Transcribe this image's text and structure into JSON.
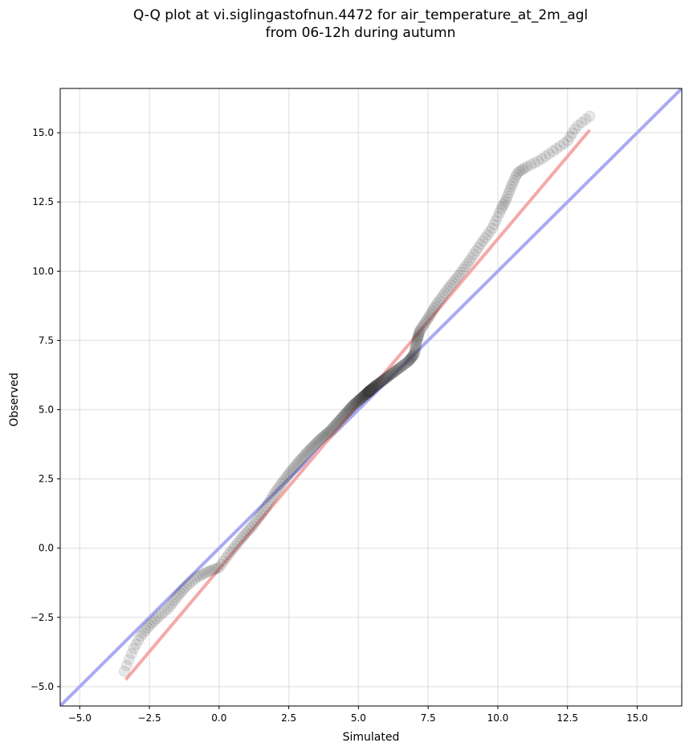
{
  "chart_data": {
    "type": "scatter",
    "title_line1": "Q-Q plot at vi.siglingastofnun.4472 for air_temperature_at_2m_agl",
    "title_line2": "from 06-12h during autumn",
    "xlabel": "Simulated",
    "ylabel": "Observed",
    "xlim": [
      -5.7,
      16.6
    ],
    "ylim": [
      -5.7,
      16.6
    ],
    "x_ticks": [
      -5.0,
      -2.5,
      0.0,
      2.5,
      5.0,
      7.5,
      10.0,
      12.5,
      15.0
    ],
    "x_tick_labels": [
      "−5.0",
      "−2.5",
      "0.0",
      "2.5",
      "5.0",
      "7.5",
      "10.0",
      "12.5",
      "15.0"
    ],
    "y_ticks": [
      -5.0,
      -2.5,
      0.0,
      2.5,
      5.0,
      7.5,
      10.0,
      12.5,
      15.0
    ],
    "y_tick_labels": [
      "−5.0",
      "−2.5",
      "0.0",
      "2.5",
      "5.0",
      "7.5",
      "10.0",
      "12.5",
      "15.0"
    ],
    "grid": true,
    "identity_line": {
      "color": "#aaaaf2",
      "x": [
        -5.7,
        16.6
      ],
      "y": [
        -5.7,
        16.6
      ]
    },
    "fit_line": {
      "color": "#f4a9a9",
      "x": [
        -3.35,
        13.3
      ],
      "y": [
        -4.75,
        15.1
      ]
    },
    "marker_color": "#404040",
    "quantile_curve": {
      "x": [
        -3.4,
        -3.1,
        -2.8,
        -2.5,
        -2.2,
        -1.8,
        -1.5,
        -1.2,
        -0.8,
        -0.4,
        0.0,
        0.4,
        0.8,
        1.2,
        1.6,
        2.0,
        2.4,
        2.8,
        3.2,
        3.6,
        4.0,
        4.4,
        4.8,
        5.2,
        5.6,
        6.0,
        6.4,
        6.8,
        7.0,
        7.1,
        7.2,
        7.5,
        7.8,
        8.2,
        8.6,
        9.0,
        9.4,
        9.8,
        10.1,
        10.3,
        10.5,
        10.7,
        11.0,
        11.5,
        12.0,
        12.5,
        12.8,
        13.3
      ],
      "y": [
        -4.45,
        -3.7,
        -3.15,
        -2.8,
        -2.5,
        -2.15,
        -1.75,
        -1.4,
        -1.05,
        -0.85,
        -0.7,
        -0.15,
        0.35,
        0.8,
        1.35,
        2.0,
        2.55,
        3.05,
        3.5,
        3.9,
        4.25,
        4.7,
        5.15,
        5.5,
        5.85,
        6.15,
        6.45,
        6.75,
        7.0,
        7.5,
        7.85,
        8.3,
        8.8,
        9.35,
        9.85,
        10.4,
        11.0,
        11.55,
        12.2,
        12.6,
        13.1,
        13.55,
        13.75,
        14.0,
        14.35,
        14.7,
        15.2,
        15.6
      ]
    },
    "n_points": 360
  }
}
